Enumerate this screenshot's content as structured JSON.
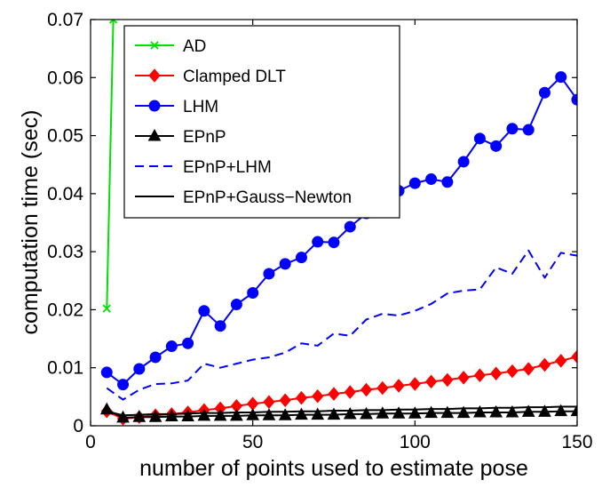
{
  "chart_data": {
    "type": "line",
    "xlabel": "number of points used to estimate pose",
    "ylabel": "computation time (sec)",
    "xlim": [
      0,
      150
    ],
    "ylim": [
      0,
      0.07
    ],
    "xticks": [
      "0",
      "50",
      "100",
      "150"
    ],
    "yticks": [
      "0",
      "0.01",
      "0.02",
      "0.03",
      "0.04",
      "0.05",
      "0.06",
      "0.07"
    ],
    "grid": false,
    "legend_position": "top-left",
    "series": [
      {
        "name": "AD",
        "color": "#00e000",
        "marker": "x",
        "dash": "solid",
        "x": [
          5,
          7
        ],
        "y": [
          0.0202,
          0.07
        ]
      },
      {
        "name": "Clamped DLT",
        "color": "#ff0000",
        "marker": "diamond",
        "dash": "solid",
        "x": [
          5,
          10,
          15,
          20,
          25,
          30,
          35,
          40,
          45,
          50,
          55,
          60,
          65,
          70,
          75,
          80,
          85,
          90,
          95,
          100,
          105,
          110,
          115,
          120,
          125,
          130,
          135,
          140,
          145,
          150
        ],
        "y": [
          0.0025,
          0.0012,
          0.0015,
          0.0018,
          0.002,
          0.0023,
          0.0027,
          0.003,
          0.0034,
          0.0038,
          0.0041,
          0.0044,
          0.0048,
          0.0051,
          0.0055,
          0.0058,
          0.0062,
          0.0065,
          0.0069,
          0.0072,
          0.0076,
          0.0079,
          0.0083,
          0.0087,
          0.009,
          0.0094,
          0.0098,
          0.0105,
          0.0112,
          0.0119
        ]
      },
      {
        "name": "LHM",
        "color": "#0000ff",
        "marker": "circle",
        "dash": "solid",
        "x": [
          5,
          10,
          15,
          20,
          25,
          30,
          35,
          40,
          45,
          50,
          55,
          60,
          65,
          70,
          75,
          80,
          85,
          90,
          95,
          100,
          105,
          110,
          115,
          120,
          125,
          130,
          135,
          140,
          145,
          150
        ],
        "y": [
          0.0092,
          0.0071,
          0.0098,
          0.0118,
          0.0137,
          0.0142,
          0.0198,
          0.0172,
          0.0209,
          0.0229,
          0.0262,
          0.0279,
          0.029,
          0.0317,
          0.0316,
          0.0343,
          0.0366,
          0.04,
          0.0405,
          0.0418,
          0.0425,
          0.042,
          0.0455,
          0.0495,
          0.0482,
          0.0512,
          0.051,
          0.0574,
          0.0601,
          0.0562
        ]
      },
      {
        "name": "EPnP",
        "color": "#000000",
        "marker": "triangle",
        "dash": "solid",
        "x": [
          5,
          10,
          15,
          20,
          25,
          30,
          35,
          40,
          45,
          50,
          55,
          60,
          65,
          70,
          75,
          80,
          85,
          90,
          95,
          100,
          105,
          110,
          115,
          120,
          125,
          130,
          135,
          140,
          145,
          150
        ],
        "y": [
          0.0028,
          0.0014,
          0.0015,
          0.0015,
          0.0016,
          0.0016,
          0.0017,
          0.0017,
          0.0017,
          0.0018,
          0.0018,
          0.0018,
          0.0019,
          0.0019,
          0.0019,
          0.002,
          0.002,
          0.0021,
          0.0021,
          0.0021,
          0.0022,
          0.0022,
          0.0022,
          0.0023,
          0.0023,
          0.0023,
          0.0024,
          0.0024,
          0.0025,
          0.0025
        ]
      },
      {
        "name": "EPnP+LHM",
        "color": "#0000ff",
        "marker": "none",
        "dash": "dashed",
        "x": [
          5,
          10,
          15,
          20,
          25,
          30,
          35,
          40,
          45,
          50,
          55,
          60,
          65,
          70,
          75,
          80,
          85,
          90,
          95,
          100,
          105,
          110,
          115,
          120,
          125,
          130,
          135,
          140,
          145,
          150
        ],
        "y": [
          0.0065,
          0.0045,
          0.0062,
          0.0072,
          0.0073,
          0.0078,
          0.0107,
          0.01,
          0.0107,
          0.0114,
          0.0118,
          0.0126,
          0.0142,
          0.0138,
          0.0159,
          0.0155,
          0.0183,
          0.0193,
          0.019,
          0.0198,
          0.021,
          0.0228,
          0.0233,
          0.0235,
          0.0273,
          0.0262,
          0.0302,
          0.0255,
          0.0298,
          0.0293
        ]
      },
      {
        "name": "EPnP+Gauss−Newton",
        "color": "#000000",
        "marker": "none",
        "dash": "solid",
        "x": [
          5,
          10,
          15,
          20,
          25,
          30,
          35,
          40,
          45,
          50,
          55,
          60,
          65,
          70,
          75,
          80,
          85,
          90,
          95,
          100,
          105,
          110,
          115,
          120,
          125,
          130,
          135,
          140,
          145,
          150
        ],
        "y": [
          0.0025,
          0.0018,
          0.0019,
          0.002,
          0.002,
          0.0021,
          0.0022,
          0.0022,
          0.0023,
          0.0023,
          0.0024,
          0.0024,
          0.0025,
          0.0025,
          0.0026,
          0.0026,
          0.0027,
          0.0027,
          0.0028,
          0.0028,
          0.0029,
          0.0029,
          0.003,
          0.003,
          0.0031,
          0.0031,
          0.0032,
          0.0032,
          0.0033,
          0.0033
        ]
      }
    ]
  }
}
